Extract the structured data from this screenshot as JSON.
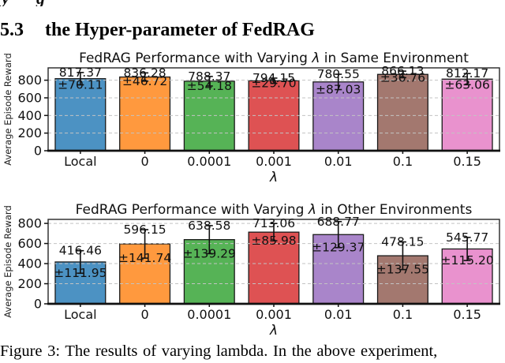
{
  "page": {
    "cropped_top_fragments": [
      "y",
      "g"
    ],
    "section_heading": {
      "number": "5.3",
      "title": "the Hyper-parameter of FedRAG"
    },
    "caption": "Figure 3: The results of varying lambda. In the above experiment,"
  },
  "chart_data": [
    {
      "type": "bar",
      "title": "FedRAG Performance with Varying λ in Same Environment",
      "categories": [
        "Local",
        "0",
        "0.0001",
        "0.001",
        "0.01",
        "0.1",
        "0.15"
      ],
      "values": [
        817.37,
        836.28,
        788.37,
        794.15,
        780.55,
        866.13,
        812.17
      ],
      "errors": [
        70.11,
        46.72,
        54.18,
        29.7,
        87.03,
        36.76,
        63.06
      ],
      "xlabel": "λ",
      "ylabel": "Average Episode Reward",
      "yticks": [
        0,
        200,
        400,
        600,
        800
      ],
      "ylim": [
        0,
        940
      ],
      "grid": "horizontal-dashed",
      "legend": null,
      "bar_colors": [
        "#4C92C3",
        "#FF993E",
        "#56B356",
        "#DE5253",
        "#A985CA",
        "#A3786F",
        "#E992CE"
      ]
    },
    {
      "type": "bar",
      "title": "FedRAG Performance with Varying λ in Other Environments",
      "categories": [
        "Local",
        "0",
        "0.0001",
        "0.001",
        "0.01",
        "0.1",
        "0.15"
      ],
      "values": [
        416.46,
        596.15,
        638.58,
        713.06,
        688.77,
        478.15,
        545.77
      ],
      "errors": [
        111.95,
        141.74,
        139.29,
        85.98,
        129.37,
        137.55,
        115.2
      ],
      "xlabel": "λ",
      "ylabel": "Average Episode Reward",
      "yticks": [
        0,
        200,
        400,
        600,
        800
      ],
      "ylim": [
        0,
        840
      ],
      "grid": "horizontal-dashed",
      "legend": null,
      "bar_colors": [
        "#4C92C3",
        "#FF993E",
        "#56B356",
        "#DE5253",
        "#A985CA",
        "#A3786F",
        "#E992CE"
      ]
    }
  ]
}
